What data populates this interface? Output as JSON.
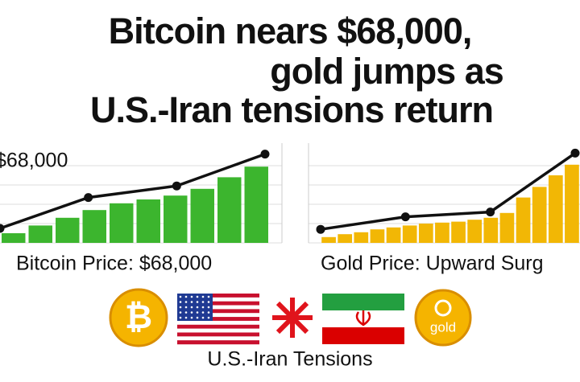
{
  "title": [
    "Bitcoin nears $68,000,",
    "gold jumps as",
    "U.S.-Iran tensions return"
  ],
  "chart_data": [
    {
      "type": "bar",
      "annotation": "$68,000",
      "caption": "Bitcoin Price: $68,000",
      "categories": [
        null,
        null,
        null,
        null,
        null,
        null,
        null,
        null,
        null,
        null
      ],
      "values": [
        10,
        18,
        26,
        34,
        41,
        45,
        49,
        56,
        68,
        79
      ],
      "color": "#3cb52e",
      "trend": {
        "values": [
          15,
          47,
          59,
          92
        ],
        "color": "#111111"
      },
      "ylim": [
        0,
        100
      ],
      "yticks": [
        0,
        20,
        40,
        60,
        80
      ],
      "grid": true
    },
    {
      "type": "bar",
      "caption": "Gold Price: Upward Surg",
      "categories": [
        null,
        null,
        null,
        null,
        null,
        null,
        null,
        null,
        null,
        null,
        null,
        null,
        null,
        null,
        null,
        null
      ],
      "values": [
        6,
        9,
        11,
        14,
        16,
        18,
        20,
        21,
        22,
        24,
        26,
        31,
        47,
        58,
        70,
        81
      ],
      "color": "#f2b705",
      "trend": {
        "values": [
          14,
          27,
          32,
          93
        ],
        "color": "#111111"
      },
      "ylim": [
        0,
        100
      ],
      "yticks": [
        0,
        20,
        40,
        60,
        80
      ],
      "grid": true
    }
  ],
  "icons": {
    "bitcoin_symbol": "₿",
    "gold_label": "gold"
  },
  "footer": "U.S.-Iran Tensions"
}
